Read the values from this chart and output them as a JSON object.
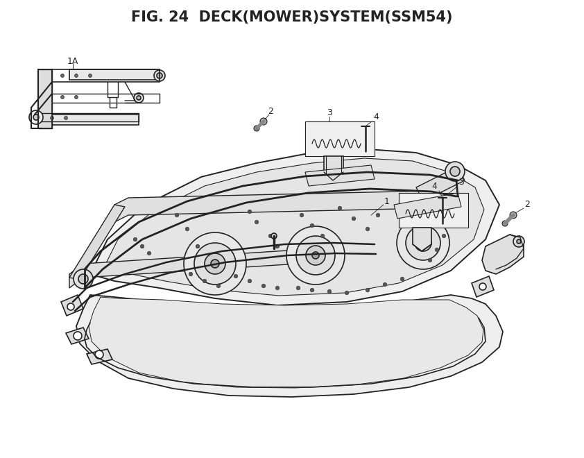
{
  "title": "FIG. 24  DECK(MOWER)SYSTEM(SSM54)",
  "title_fontsize": 15,
  "title_fontweight": "bold",
  "bg_color": "#ffffff",
  "line_color": "#222222",
  "fig_width": 8.42,
  "fig_height": 6.6,
  "dpi": 100
}
